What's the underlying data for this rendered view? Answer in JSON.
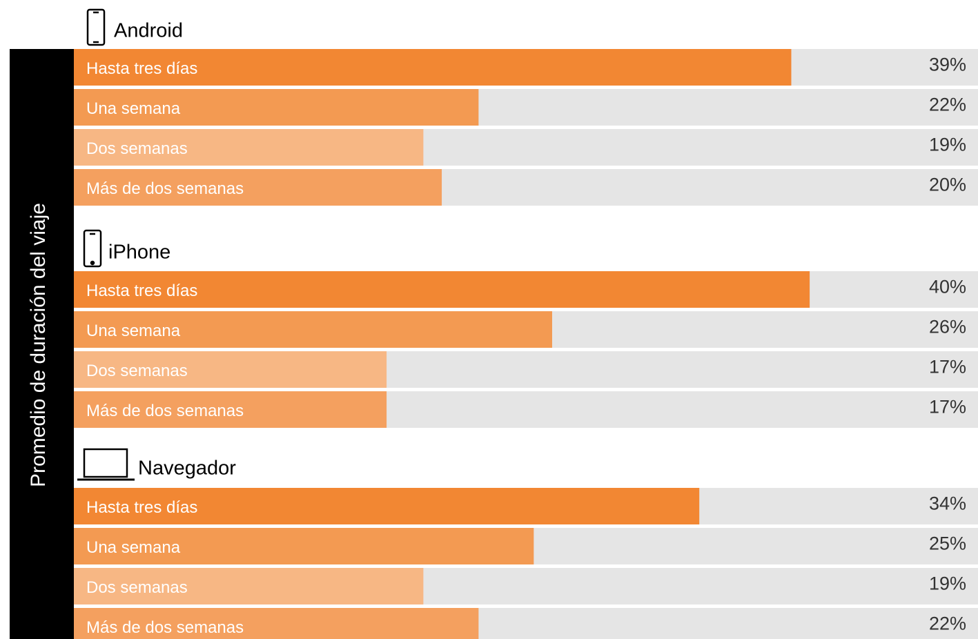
{
  "side_label": "Promedio de duración del viaje",
  "chart_data": [
    {
      "type": "bar",
      "title": "Android",
      "categories": [
        "Hasta tres días",
        "Una semana",
        "Dos semanas",
        "Más de dos semanas"
      ],
      "values": [
        39,
        22,
        19,
        20
      ],
      "value_labels": [
        "39%",
        "22%",
        "19%",
        "20%"
      ],
      "colors": [
        "#f28733",
        "#f39a52",
        "#f7b784",
        "#f4a05f"
      ],
      "xlim": [
        0,
        49.15
      ]
    },
    {
      "type": "bar",
      "title": "iPhone",
      "categories": [
        "Hasta tres días",
        "Una semana",
        "Dos semanas",
        "Más de dos semanas"
      ],
      "values": [
        40,
        26,
        17,
        17
      ],
      "value_labels": [
        "40%",
        "26%",
        "17%",
        "17%"
      ],
      "colors": [
        "#f28733",
        "#f39a52",
        "#f7b784",
        "#f4a05f"
      ],
      "xlim": [
        0,
        49.15
      ]
    },
    {
      "type": "bar",
      "title": "Navegador",
      "categories": [
        "Hasta tres días",
        "Una semana",
        "Dos semanas",
        "Más de dos semanas"
      ],
      "values": [
        34,
        25,
        19,
        22
      ],
      "value_labels": [
        "34%",
        "25%",
        "19%",
        "22%"
      ],
      "colors": [
        "#f28733",
        "#f39a52",
        "#f7b784",
        "#f4a05f"
      ],
      "xlim": [
        0,
        49.15
      ]
    }
  ]
}
